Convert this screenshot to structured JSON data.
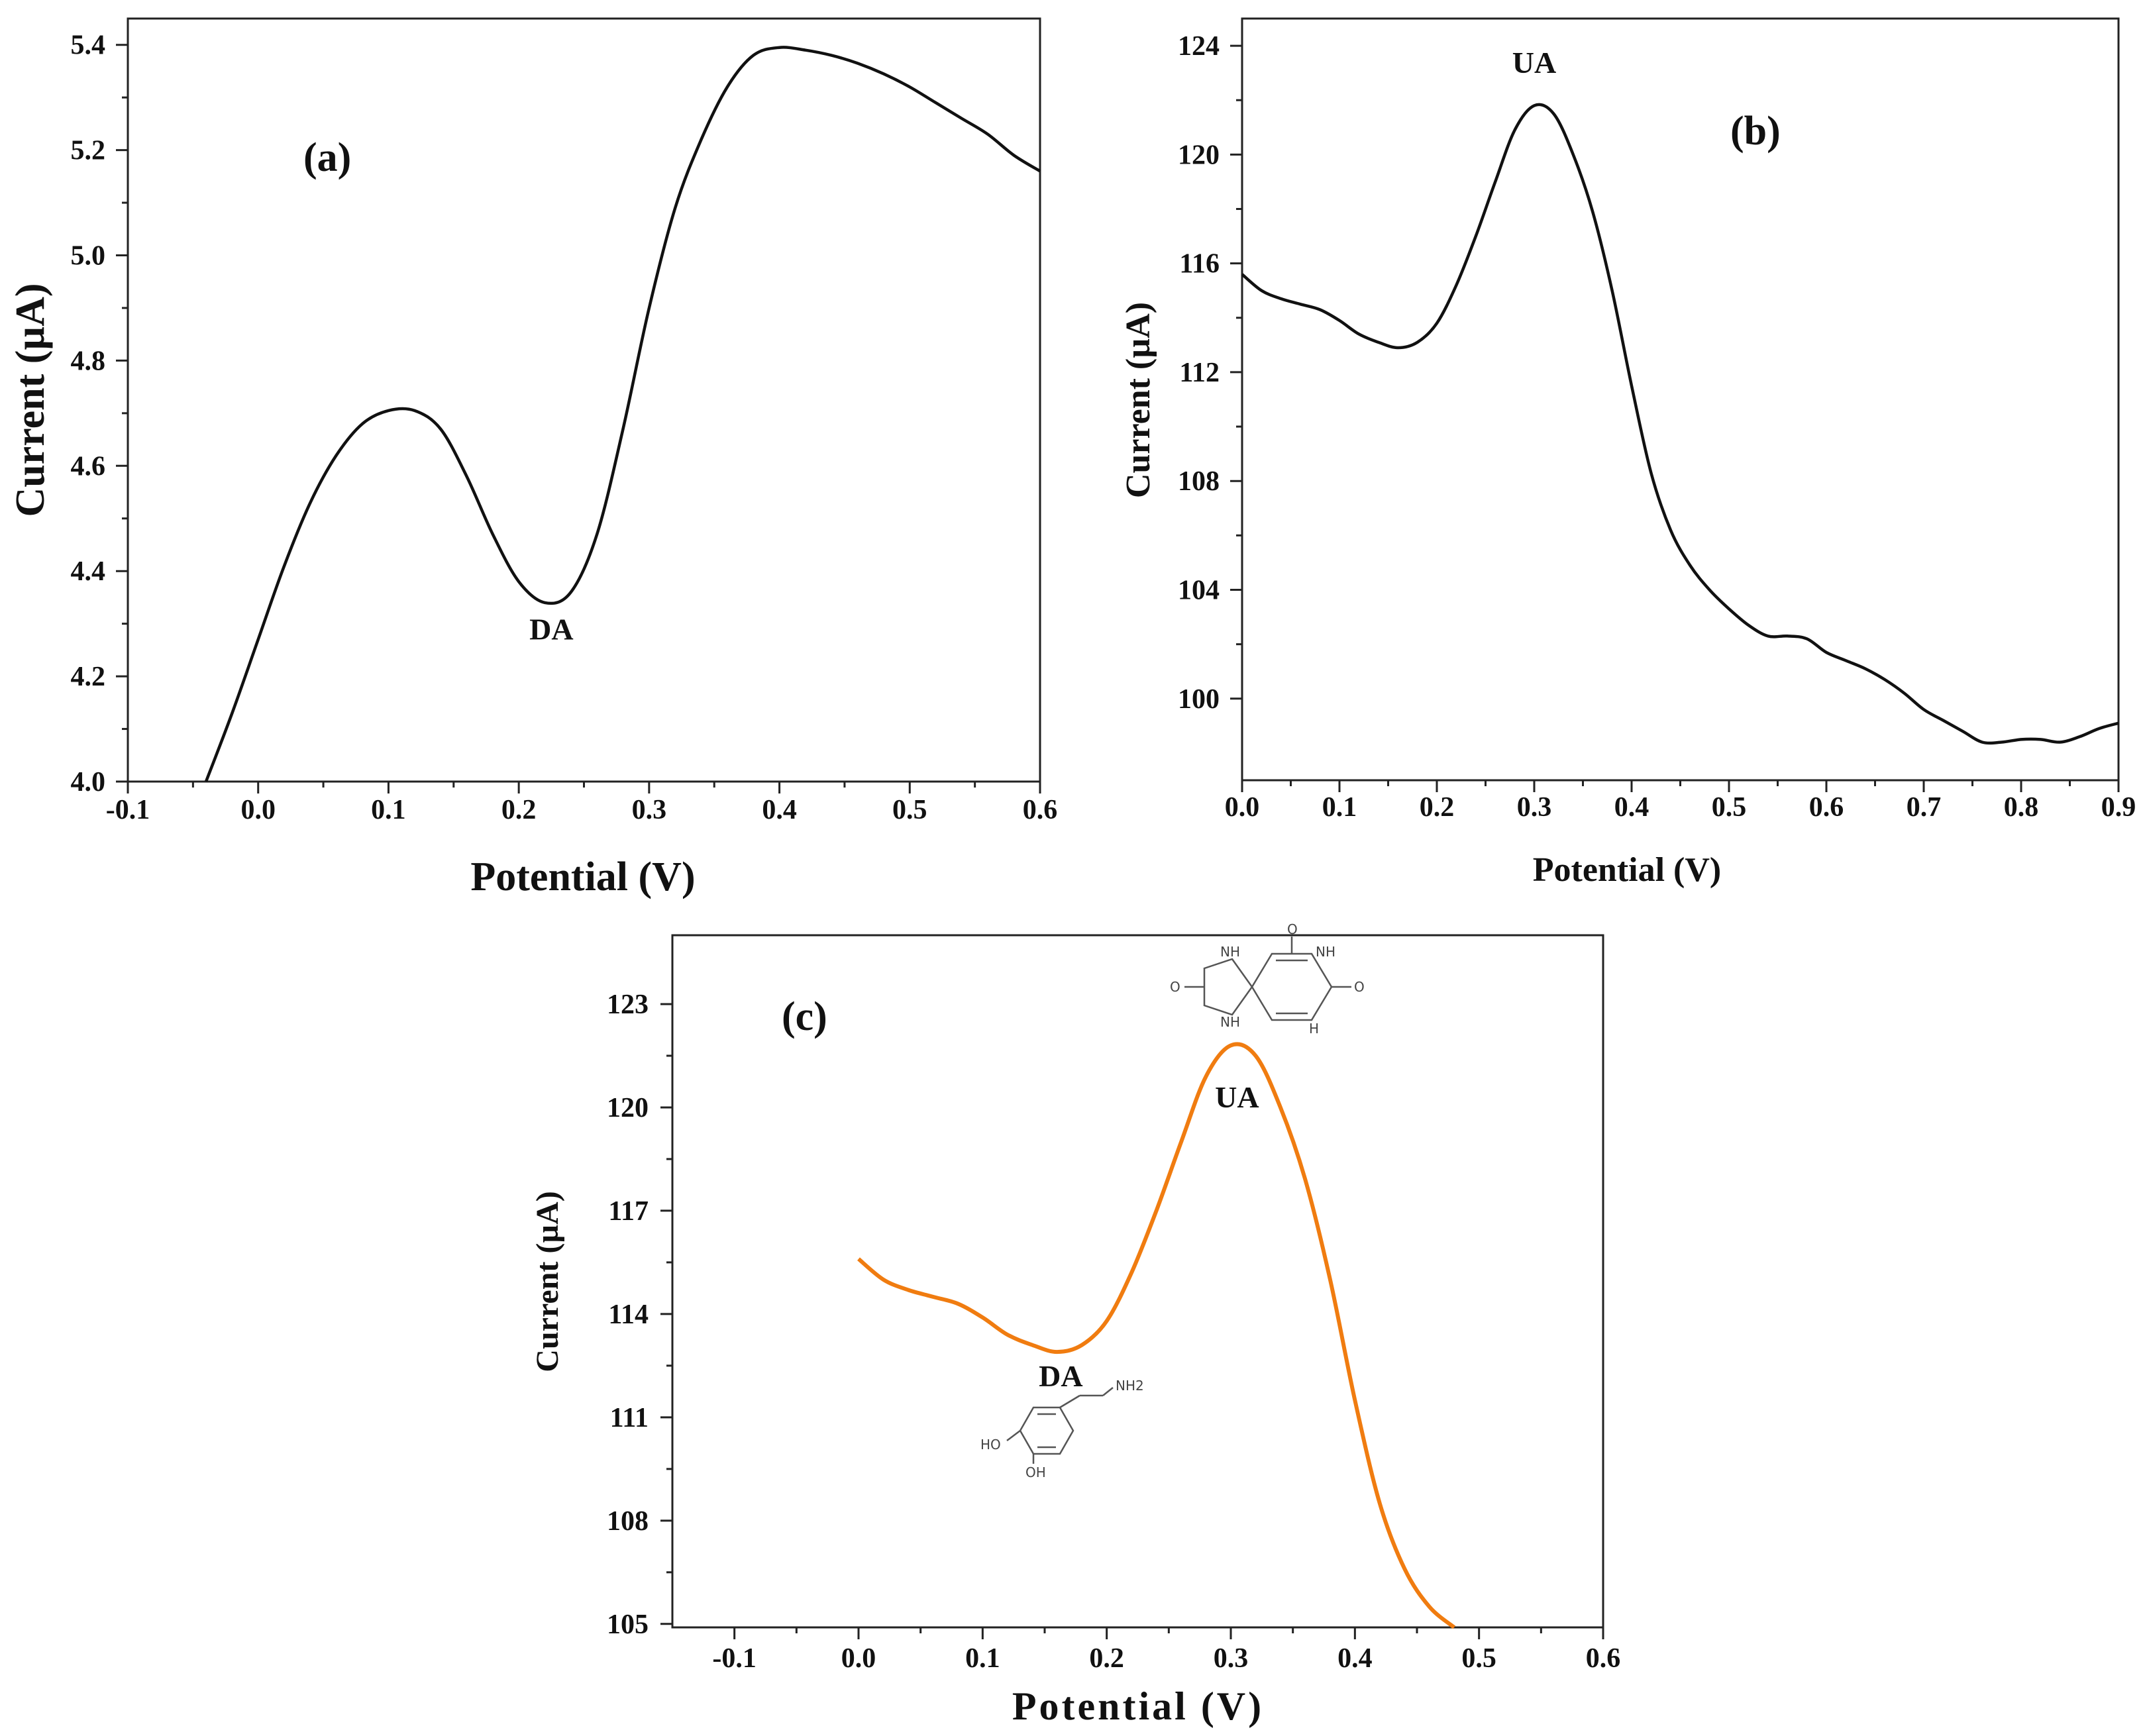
{
  "chart_data": [
    {
      "type": "line",
      "panel": "(a)",
      "xlabel": "Potential (V)",
      "ylabel": "Current (µA)",
      "xlim": [
        -0.1,
        0.6
      ],
      "ylim": [
        4.0,
        5.45
      ],
      "xticks": [
        "-0.1",
        "0.0",
        "0.1",
        "0.2",
        "0.3",
        "0.4",
        "0.5",
        "0.6"
      ],
      "yticks": [
        "4.0",
        "4.2",
        "4.4",
        "4.6",
        "4.8",
        "5.0",
        "5.2",
        "5.4"
      ],
      "color": "#111111",
      "annotations": [
        {
          "text": "DA",
          "x": 0.225,
          "y": 4.27
        }
      ],
      "x": [
        -0.04,
        -0.02,
        0.0,
        0.02,
        0.04,
        0.06,
        0.08,
        0.1,
        0.12,
        0.14,
        0.16,
        0.18,
        0.2,
        0.22,
        0.24,
        0.26,
        0.28,
        0.3,
        0.32,
        0.34,
        0.36,
        0.38,
        0.4,
        0.42,
        0.44,
        0.46,
        0.48,
        0.5,
        0.52,
        0.54,
        0.56,
        0.58,
        0.6
      ],
      "y": [
        4.0,
        4.13,
        4.27,
        4.41,
        4.53,
        4.62,
        4.68,
        4.705,
        4.705,
        4.67,
        4.58,
        4.47,
        4.38,
        4.34,
        4.36,
        4.47,
        4.67,
        4.9,
        5.09,
        5.22,
        5.32,
        5.38,
        5.395,
        5.39,
        5.38,
        5.365,
        5.345,
        5.32,
        5.29,
        5.26,
        5.23,
        5.19,
        5.16
      ]
    },
    {
      "type": "line",
      "panel": "(b)",
      "xlabel": "Potential (V)",
      "ylabel": "Current (µA)",
      "xlim": [
        0.0,
        0.9
      ],
      "ylim": [
        97,
        125
      ],
      "xticks": [
        "0.0",
        "0.1",
        "0.2",
        "0.3",
        "0.4",
        "0.5",
        "0.6",
        "0.7",
        "0.8",
        "0.9"
      ],
      "yticks": [
        "100",
        "104",
        "108",
        "112",
        "116",
        "120",
        "124"
      ],
      "color": "#111111",
      "annotations": [
        {
          "text": "UA",
          "x": 0.3,
          "y": 123.0
        }
      ],
      "x": [
        0.0,
        0.02,
        0.04,
        0.06,
        0.08,
        0.1,
        0.12,
        0.14,
        0.16,
        0.18,
        0.2,
        0.22,
        0.24,
        0.26,
        0.28,
        0.3,
        0.32,
        0.34,
        0.36,
        0.38,
        0.4,
        0.42,
        0.44,
        0.46,
        0.48,
        0.5,
        0.52,
        0.54,
        0.56,
        0.58,
        0.6,
        0.62,
        0.64,
        0.66,
        0.68,
        0.7,
        0.72,
        0.74,
        0.76,
        0.78,
        0.8,
        0.82,
        0.84,
        0.86,
        0.88,
        0.9
      ],
      "y": [
        115.6,
        115.0,
        114.7,
        114.5,
        114.3,
        113.9,
        113.4,
        113.1,
        112.9,
        113.1,
        113.8,
        115.2,
        117.0,
        119.0,
        120.9,
        121.8,
        121.5,
        120.0,
        117.9,
        115.0,
        111.5,
        108.3,
        106.2,
        104.9,
        104.0,
        103.3,
        102.7,
        102.3,
        102.3,
        102.2,
        101.7,
        101.4,
        101.1,
        100.7,
        100.2,
        99.6,
        99.2,
        98.8,
        98.4,
        98.4,
        98.5,
        98.5,
        98.4,
        98.6,
        98.9,
        99.1
      ]
    },
    {
      "type": "line",
      "panel": "(c)",
      "xlabel": "Potential (V)",
      "ylabel": "Current (µA)",
      "xlim": [
        -0.15,
        0.6
      ],
      "ylim": [
        104.9,
        125.0
      ],
      "xticks": [
        "-0.1",
        "0.0",
        "0.1",
        "0.2",
        "0.3",
        "0.4",
        "0.5",
        "0.6"
      ],
      "yticks": [
        "105",
        "108",
        "111",
        "114",
        "117",
        "120",
        "123"
      ],
      "color": "#f07c10",
      "annotations": [
        {
          "text": "UA",
          "x": 0.305,
          "y": 120.0
        },
        {
          "text": "DA",
          "x": 0.163,
          "y": 111.9
        }
      ],
      "x": [
        0.0,
        0.02,
        0.04,
        0.06,
        0.08,
        0.1,
        0.12,
        0.14,
        0.16,
        0.18,
        0.2,
        0.22,
        0.24,
        0.26,
        0.28,
        0.3,
        0.32,
        0.34,
        0.36,
        0.38,
        0.4,
        0.42,
        0.44,
        0.46,
        0.48
      ],
      "y": [
        115.6,
        115.0,
        114.7,
        114.5,
        114.3,
        113.9,
        113.4,
        113.1,
        112.9,
        113.1,
        113.8,
        115.2,
        117.0,
        119.0,
        120.9,
        121.8,
        121.5,
        120.0,
        117.9,
        115.0,
        111.5,
        108.5,
        106.6,
        105.5,
        104.9
      ]
    }
  ],
  "figure": {
    "panel_c_structures": {
      "uric_acid_atoms": [
        "NH",
        "NH",
        "O",
        "O",
        "O",
        "NH",
        "H"
      ],
      "dopamine_atoms": [
        "NH2",
        "HO",
        "OH"
      ]
    }
  }
}
